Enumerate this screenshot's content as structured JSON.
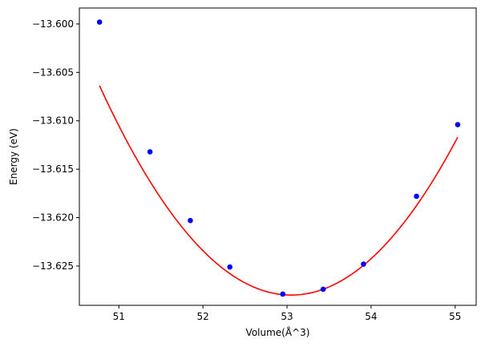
{
  "chart_data": {
    "type": "scatter",
    "title": "",
    "xlabel": "Volume(Å^3)",
    "ylabel": "Energy (eV)",
    "xlim": [
      50.53,
      55.25
    ],
    "ylim": [
      -13.62906,
      -13.59835
    ],
    "xticks": [
      51,
      52,
      53,
      54,
      55
    ],
    "xtick_labels": [
      "51",
      "52",
      "53",
      "54",
      "55"
    ],
    "yticks": [
      -13.6,
      -13.605,
      -13.61,
      -13.615,
      -13.62,
      -13.625
    ],
    "ytick_labels": [
      "−13.600",
      "−13.605",
      "−13.610",
      "−13.615",
      "−13.620",
      "−13.625"
    ],
    "grid": false,
    "series": [
      {
        "kind": "points",
        "color": "#0000ff",
        "x": [
          50.77,
          51.37,
          51.85,
          52.32,
          52.95,
          53.43,
          53.91,
          54.54,
          55.03
        ],
        "y": [
          -13.5998,
          -13.6132,
          -13.6203,
          -13.6251,
          -13.6279,
          -13.6274,
          -13.6248,
          -13.6178,
          -13.6104
        ]
      },
      {
        "kind": "fit-curve",
        "color": "#ff0000",
        "fit": "quadratic",
        "x_range": [
          50.77,
          55.03
        ],
        "x_min": 53.05,
        "y_min": -13.628,
        "curvature": 0.00416
      }
    ]
  }
}
